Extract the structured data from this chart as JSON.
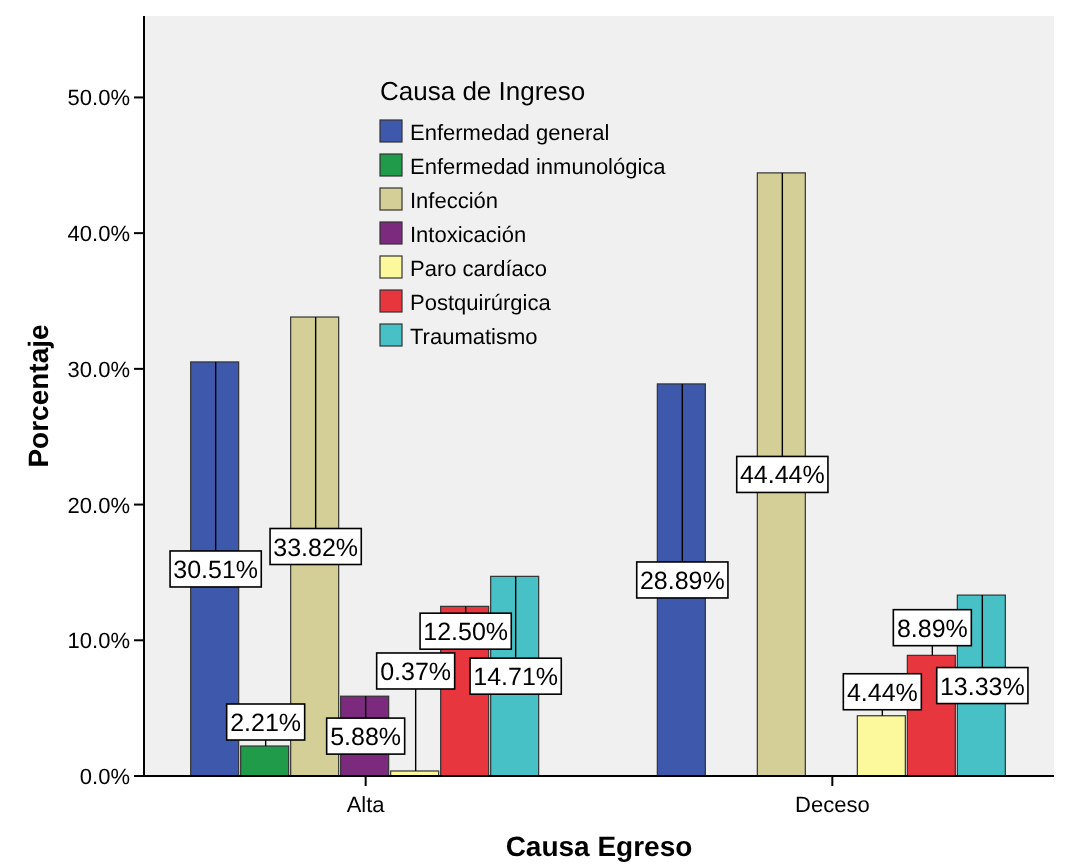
{
  "chart_data": {
    "type": "bar",
    "xlabel": "Causa Egreso",
    "ylabel": "Porcentaje",
    "legend_title": "Causa de Ingreso",
    "legend": "top",
    "grid": false,
    "categories": [
      "Alta",
      "Deceso"
    ],
    "ylim": [
      0,
      56
    ],
    "yticks": [
      {
        "value": 0,
        "label": "0.0%"
      },
      {
        "value": 10,
        "label": "10.0%"
      },
      {
        "value": 20,
        "label": "20.0%"
      },
      {
        "value": 30,
        "label": "30.0%"
      },
      {
        "value": 40,
        "label": "40.0%"
      },
      {
        "value": 50,
        "label": "50.0%"
      }
    ],
    "series": [
      {
        "name": "Enfermedad general",
        "color": "#3e58ac",
        "values": [
          30.51,
          28.89
        ],
        "value_labels": [
          "30.51%",
          "28.89%"
        ]
      },
      {
        "name": "Enfermedad inmunológica",
        "color": "#1f9b4a",
        "values": [
          2.21,
          null
        ],
        "value_labels": [
          "2.21%",
          null
        ]
      },
      {
        "name": "Infección",
        "color": "#d4cf96",
        "values": [
          33.82,
          44.44
        ],
        "value_labels": [
          "33.82%",
          "44.44%"
        ]
      },
      {
        "name": "Intoxicación",
        "color": "#7b2a7e",
        "values": [
          5.88,
          null
        ],
        "value_labels": [
          "5.88%",
          null
        ]
      },
      {
        "name": "Paro cardíaco",
        "color": "#fbf99c",
        "values": [
          0.37,
          4.44
        ],
        "value_labels": [
          "0.37%",
          "4.44%"
        ]
      },
      {
        "name": "Postquirúrgica",
        "color": "#e8363f",
        "values": [
          12.5,
          8.89
        ],
        "value_labels": [
          "12.50%",
          "8.89%"
        ]
      },
      {
        "name": "Traumatismo",
        "color": "#48c1c6",
        "values": [
          14.71,
          13.33
        ],
        "value_labels": [
          "14.71%",
          "13.33%"
        ]
      }
    ]
  }
}
